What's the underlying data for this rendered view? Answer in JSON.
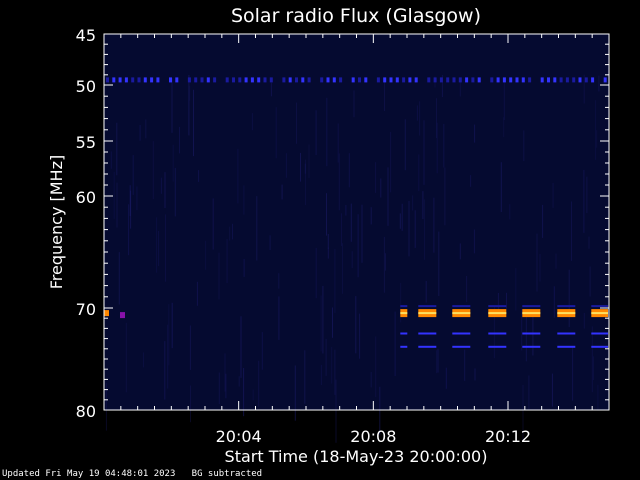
{
  "chart_data": {
    "type": "heatmap",
    "title": "Solar radio Flux (Glasgow)",
    "xlabel": "Start Time (18-May-23 20:00:00)",
    "ylabel": "Frequency [MHz]",
    "x_range_minutes": [
      0,
      15
    ],
    "x_ticks": [
      {
        "minute": 4,
        "label": "20:04"
      },
      {
        "minute": 8,
        "label": "20:08"
      },
      {
        "minute": 12,
        "label": "20:12"
      }
    ],
    "y_range_mhz": [
      45,
      80
    ],
    "y_ticks": [
      {
        "mhz": 45,
        "label": "45"
      },
      {
        "mhz": 50,
        "label": "50"
      },
      {
        "mhz": 55,
        "label": "55"
      },
      {
        "mhz": 60,
        "label": "60"
      },
      {
        "mhz": 70,
        "label": "70"
      },
      {
        "mhz": 80,
        "label": "80"
      }
    ],
    "colors": {
      "background": "#000000",
      "plot_background": "#050a30",
      "weak": "#1a1aa0",
      "medium": "#3333ff",
      "strong": "#ff8800",
      "peak": "#ffe060",
      "axes": "#ffffff"
    },
    "features": [
      {
        "name": "interference 49.5 MHz",
        "mhz": 49.5,
        "minute_from": 0,
        "minute_to": 15,
        "intensity": "medium",
        "pattern": "intermittent"
      },
      {
        "name": "emission 70.5 MHz early",
        "mhz": 70.5,
        "minute_from": 0,
        "minute_to": 0.5,
        "intensity": "strong",
        "pattern": "blip"
      },
      {
        "name": "emission 70.5 MHz bursts",
        "mhz": 70.5,
        "minute_from": 8.8,
        "minute_to": 15,
        "intensity": "strong",
        "pattern": "periodic"
      },
      {
        "name": "line 72.5 MHz",
        "mhz": 72.5,
        "minute_from": 8.8,
        "minute_to": 15,
        "intensity": "weak",
        "pattern": "periodic"
      },
      {
        "name": "line 73.8 MHz",
        "mhz": 73.8,
        "minute_from": 8.8,
        "minute_to": 15,
        "intensity": "weak",
        "pattern": "periodic"
      }
    ]
  },
  "footer": {
    "updated": "Updated Fri May 19 04:48:01 2023",
    "mode": "BG subtracted"
  }
}
